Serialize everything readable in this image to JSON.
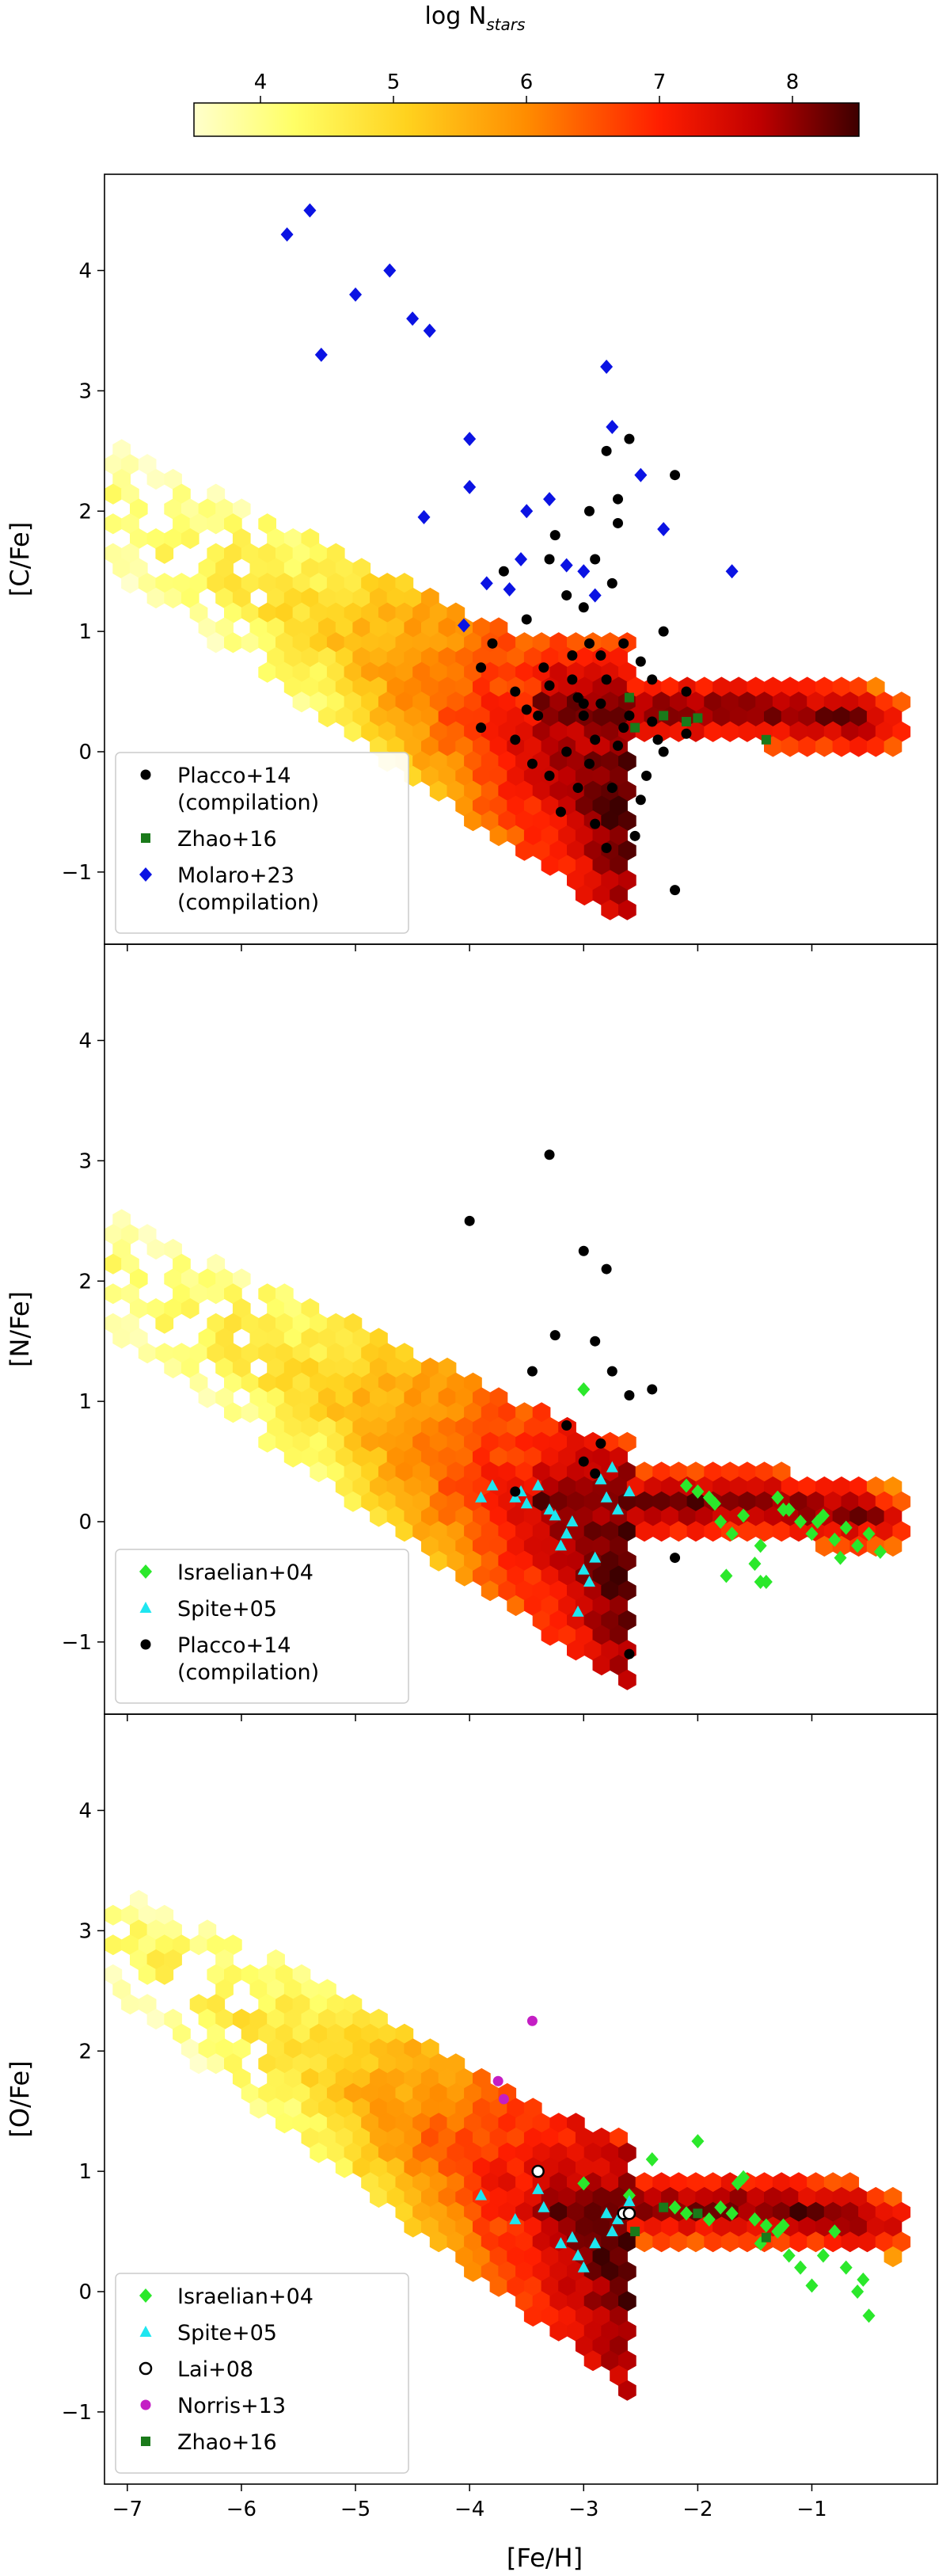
{
  "figure": {
    "colorbar": {
      "title": "log N",
      "title_sub": "stars",
      "ticks": [
        "4",
        "5",
        "6",
        "7",
        "8"
      ],
      "range": [
        3.5,
        8.5
      ]
    },
    "x_axis": {
      "label": "[Fe/H]",
      "ticks": [
        "−7",
        "−6",
        "−5",
        "−4",
        "−3",
        "−2",
        "−1"
      ],
      "tick_values": [
        -7,
        -6,
        -5,
        -4,
        -3,
        -2,
        -1
      ],
      "range": [
        -7.2,
        0.1
      ]
    }
  },
  "chart_data": [
    {
      "type": "scatter",
      "panel": "top",
      "ylabel": "[C/Fe]",
      "yticks": [
        "−1",
        "0",
        "1",
        "2",
        "3",
        "4"
      ],
      "ytick_values": [
        -1,
        0,
        1,
        2,
        3,
        4
      ],
      "ylim": [
        -1.6,
        4.8
      ],
      "series": [
        {
          "name": "Placco+14",
          "name2": "(compilation)",
          "marker": "circle",
          "color": "#000000",
          "x": [
            -3.9,
            -3.6,
            -3.4,
            -3.3,
            -3.1,
            -3.0,
            -2.9,
            -2.8,
            -2.7,
            -2.9,
            -3.05,
            -3.15,
            -2.85,
            -2.95,
            -3.25,
            -3.5,
            -2.6,
            -2.4,
            -2.3,
            -2.2,
            -2.1,
            -3.6,
            -3.8,
            -3.45,
            -3.35,
            -2.75,
            -2.65,
            -3.1,
            -2.5,
            -2.45,
            -2.9,
            -3.2,
            -2.8,
            -3.0,
            -2.7,
            -2.2,
            -2.35,
            -2.55,
            -3.7,
            -3.9,
            -3.15,
            -2.95,
            -2.85,
            -2.75,
            -3.05,
            -2.65,
            -2.4,
            -2.3,
            -3.5,
            -3.3,
            -2.6,
            -2.1,
            -2.95,
            -3.3,
            -2.5,
            -2.7,
            -3.0,
            -2.8
          ],
          "y": [
            0.2,
            0.5,
            0.3,
            -0.2,
            0.8,
            1.2,
            1.6,
            2.5,
            2.1,
            0.1,
            -0.3,
            0.0,
            0.4,
            0.9,
            1.8,
            1.1,
            0.3,
            0.6,
            1.0,
            2.3,
            0.5,
            0.1,
            0.9,
            -0.1,
            0.7,
            1.4,
            0.2,
            0.6,
            -0.4,
            -0.2,
            -0.6,
            -0.5,
            -0.8,
            0.3,
            1.9,
            -1.15,
            0.1,
            -0.7,
            1.5,
            0.7,
            1.3,
            2.0,
            0.8,
            -0.3,
            0.45,
            0.9,
            0.25,
            0.0,
            0.35,
            1.6,
            2.6,
            0.15,
            -0.1,
            0.55,
            0.75,
            0.05,
            0.4,
            0.6
          ]
        },
        {
          "name": "Zhao+16",
          "marker": "square",
          "color": "#1a7a1a",
          "x": [
            -2.6,
            -2.3,
            -2.1,
            -2.0,
            -1.4,
            -2.55
          ],
          "y": [
            0.45,
            0.3,
            0.25,
            0.28,
            0.1,
            0.2
          ]
        },
        {
          "name": "Molaro+23",
          "name2": "(compilation)",
          "marker": "diamond",
          "color": "#0b13e3",
          "x": [
            -5.6,
            -5.4,
            -5.0,
            -4.7,
            -4.5,
            -4.35,
            -5.3,
            -4.4,
            -4.0,
            -4.0,
            -3.65,
            -3.85,
            -4.05,
            -3.5,
            -3.55,
            -3.3,
            -3.15,
            -2.8,
            -2.75,
            -2.5,
            -2.3,
            -1.7,
            -3.0,
            -2.9
          ],
          "y": [
            4.3,
            4.5,
            3.8,
            4.0,
            3.6,
            3.5,
            3.3,
            1.95,
            2.6,
            2.2,
            1.35,
            1.4,
            1.05,
            2.0,
            1.6,
            2.1,
            1.55,
            3.2,
            2.7,
            2.3,
            1.85,
            1.5,
            1.5,
            1.3
          ]
        }
      ]
    },
    {
      "type": "scatter",
      "panel": "middle",
      "ylabel": "[N/Fe]",
      "yticks": [
        "−1",
        "0",
        "1",
        "2",
        "3",
        "4"
      ],
      "ytick_values": [
        -1,
        0,
        1,
        2,
        3,
        4
      ],
      "ylim": [
        -1.6,
        4.8
      ],
      "series": [
        {
          "name": "Israelian+04",
          "marker": "diamond",
          "color": "#2be82b",
          "x": [
            -3.0,
            -2.1,
            -1.9,
            -1.8,
            -1.7,
            -1.6,
            -1.5,
            -1.4,
            -1.3,
            -1.2,
            -1.1,
            -1.0,
            -0.9,
            -0.8,
            -0.7,
            -0.6,
            -0.5,
            -0.4,
            -1.45,
            -1.45,
            -1.75,
            -2.0,
            -1.85,
            -1.25,
            -0.95,
            -0.75
          ],
          "y": [
            1.1,
            0.3,
            0.2,
            0.0,
            -0.1,
            0.05,
            -0.35,
            -0.5,
            0.2,
            0.1,
            0.0,
            -0.1,
            0.05,
            -0.15,
            -0.05,
            -0.2,
            -0.1,
            -0.25,
            -0.2,
            -0.5,
            -0.45,
            0.25,
            0.15,
            0.1,
            0.0,
            -0.3
          ]
        },
        {
          "name": "Spite+05",
          "marker": "triangle",
          "color": "#1ee6f0",
          "x": [
            -3.9,
            -3.8,
            -3.6,
            -3.55,
            -3.5,
            -3.4,
            -3.3,
            -3.2,
            -3.1,
            -3.0,
            -2.9,
            -2.8,
            -2.7,
            -2.6,
            -3.05,
            -2.95,
            -2.85,
            -3.25,
            -3.15,
            -2.75
          ],
          "y": [
            0.2,
            0.3,
            0.2,
            0.25,
            0.15,
            0.3,
            0.1,
            -0.2,
            0.0,
            -0.4,
            -0.3,
            0.2,
            0.1,
            0.25,
            -0.75,
            -0.5,
            0.35,
            0.05,
            -0.1,
            0.45
          ]
        },
        {
          "name": "Placco+14",
          "name2": "(compilation)",
          "marker": "circle",
          "color": "#000000",
          "x": [
            -4.0,
            -3.3,
            -3.0,
            -2.8,
            -2.9,
            -3.25,
            -2.75,
            -2.6,
            -2.4,
            -3.45,
            -3.15,
            -2.85,
            -3.6,
            -2.2,
            -3.0,
            -2.9,
            -2.6
          ],
          "y": [
            2.5,
            3.05,
            2.25,
            2.1,
            1.5,
            1.55,
            1.25,
            1.05,
            1.1,
            1.25,
            0.8,
            0.65,
            0.25,
            -0.3,
            0.5,
            0.4,
            -1.1
          ]
        }
      ]
    },
    {
      "type": "scatter",
      "panel": "bottom",
      "ylabel": "[O/Fe]",
      "yticks": [
        "−1",
        "0",
        "1",
        "2",
        "3",
        "4"
      ],
      "ytick_values": [
        -1,
        0,
        1,
        2,
        3,
        4
      ],
      "ylim": [
        -1.6,
        4.8
      ],
      "series": [
        {
          "name": "Israelian+04",
          "marker": "diamond",
          "color": "#2be82b",
          "x": [
            -3.0,
            -2.6,
            -2.4,
            -2.2,
            -2.0,
            -1.9,
            -1.8,
            -1.7,
            -1.6,
            -1.5,
            -1.4,
            -1.3,
            -1.2,
            -1.1,
            -1.0,
            -0.9,
            -0.8,
            -0.7,
            -0.6,
            -0.5,
            -2.1,
            -1.65,
            -1.45,
            -0.55,
            -1.25
          ],
          "y": [
            0.9,
            0.8,
            1.1,
            0.7,
            1.25,
            0.6,
            0.7,
            0.65,
            0.95,
            0.6,
            0.55,
            0.5,
            0.3,
            0.2,
            0.05,
            0.3,
            0.5,
            0.2,
            0.0,
            -0.2,
            0.65,
            0.9,
            0.4,
            0.1,
            0.55
          ]
        },
        {
          "name": "Spite+05",
          "marker": "triangle",
          "color": "#1ee6f0",
          "x": [
            -3.9,
            -3.6,
            -3.4,
            -3.2,
            -3.0,
            -2.9,
            -2.8,
            -2.7,
            -2.6,
            -3.1,
            -3.35,
            -3.05,
            -2.75
          ],
          "y": [
            0.8,
            0.6,
            0.85,
            0.4,
            0.2,
            0.4,
            0.65,
            0.6,
            0.75,
            0.45,
            0.7,
            0.3,
            0.5
          ]
        },
        {
          "name": "Lai+08",
          "marker": "open-circle",
          "color": "#000000",
          "x": [
            -3.4,
            -2.65,
            -2.6
          ],
          "y": [
            1.0,
            0.65,
            0.65
          ]
        },
        {
          "name": "Norris+13",
          "marker": "circle",
          "color": "#c41ec4",
          "x": [
            -3.45,
            -3.75,
            -3.7
          ],
          "y": [
            2.25,
            1.75,
            1.6
          ]
        },
        {
          "name": "Zhao+16",
          "marker": "square",
          "color": "#1a7a1a",
          "x": [
            -2.55,
            -2.3,
            -2.0,
            -1.4
          ],
          "y": [
            0.5,
            0.7,
            0.65,
            0.45
          ]
        }
      ]
    }
  ]
}
